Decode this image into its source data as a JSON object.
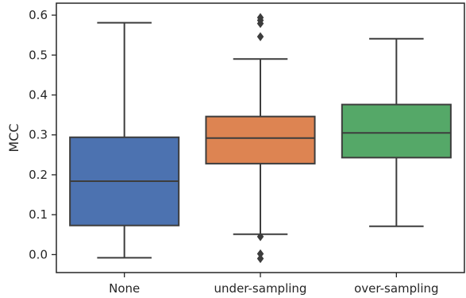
{
  "chart_data": {
    "type": "box",
    "ylabel": "MCC",
    "xlabel": "",
    "ylim": [
      -0.045,
      0.63
    ],
    "yticks": [
      0.0,
      0.1,
      0.2,
      0.3,
      0.4,
      0.5,
      0.6
    ],
    "ytick_labels": [
      "0.0",
      "0.1",
      "0.2",
      "0.3",
      "0.4",
      "0.5",
      "0.6"
    ],
    "categories": [
      "None",
      "under-sampling",
      "over-sampling"
    ],
    "boxes": [
      {
        "category": "None",
        "color": "#4c72b0",
        "whisker_low": -0.008,
        "q1": 0.073,
        "median": 0.184,
        "q3": 0.294,
        "whisker_high": 0.581,
        "outliers": []
      },
      {
        "category": "under-sampling",
        "color": "#dd8452",
        "whisker_low": 0.051,
        "q1": 0.228,
        "median": 0.292,
        "q3": 0.346,
        "whisker_high": 0.49,
        "outliers": [
          0.045,
          0.002,
          -0.01,
          0.546,
          0.579,
          0.587,
          0.594
        ]
      },
      {
        "category": "over-sampling",
        "color": "#55a868",
        "whisker_low": 0.071,
        "q1": 0.243,
        "median": 0.305,
        "q3": 0.376,
        "whisker_high": 0.541,
        "outliers": []
      }
    ],
    "grid": false,
    "line_color": "#3d3d3d"
  }
}
